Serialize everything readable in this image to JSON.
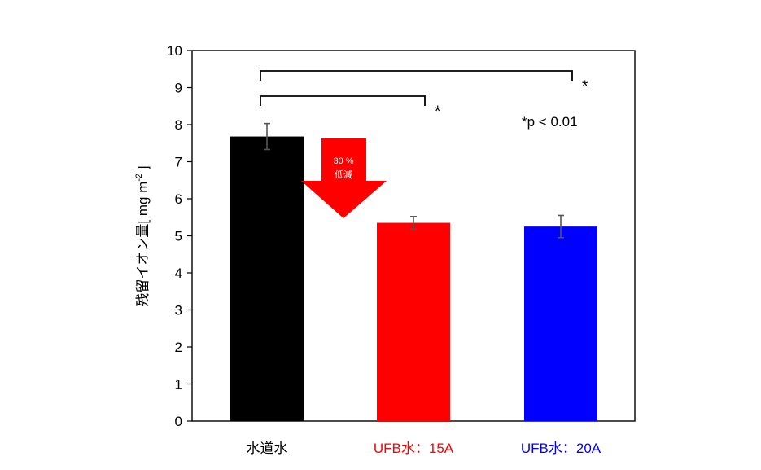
{
  "chart_data": {
    "type": "bar",
    "categories": [
      "水道水",
      "UFB水：15A",
      "UFB水：20A"
    ],
    "category_colors": [
      "#000000",
      "#ff0000",
      "#0000ff"
    ],
    "values": [
      7.68,
      5.35,
      5.25
    ],
    "errors": [
      0.35,
      0.17,
      0.3
    ],
    "bar_colors": [
      "#000000",
      "#ff0000",
      "#0000ff"
    ],
    "ylabel_main": "残留イオン量",
    "ylabel_unit": "[ mg m",
    "ylabel_exp": "-2",
    "ylabel_close": " ]",
    "ylim": [
      0,
      10
    ],
    "yticks": [
      "0",
      "1",
      "2",
      "3",
      "4",
      "5",
      "6",
      "7",
      "8",
      "9",
      "10"
    ],
    "grid": false,
    "significance": [
      {
        "from": 0,
        "to": 1,
        "label": "*"
      },
      {
        "from": 0,
        "to": 2,
        "label": "*"
      }
    ],
    "note": "*p < 0.01",
    "reduction_arrow": {
      "line1": "30 %",
      "line2": "低減",
      "color": "#ff0000"
    }
  }
}
